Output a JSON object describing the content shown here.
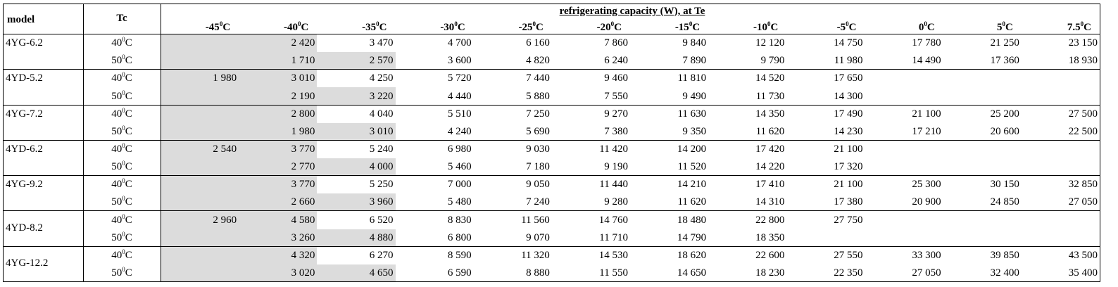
{
  "table": {
    "caption": "refrigerating capacity (W), at Te",
    "header_model": "model",
    "header_tc": "Tc",
    "te_columns": [
      {
        "value": "-45",
        "sup": "0",
        "unit": "C"
      },
      {
        "value": "-40",
        "sup": "0",
        "unit": "C"
      },
      {
        "value": "-35",
        "sup": "0",
        "unit": "C"
      },
      {
        "value": "-30",
        "sup": "0",
        "unit": "C"
      },
      {
        "value": "-25",
        "sup": "0",
        "unit": "C"
      },
      {
        "value": "-20",
        "sup": "0",
        "unit": "C"
      },
      {
        "value": "-15",
        "sup": "0",
        "unit": "C"
      },
      {
        "value": "-10",
        "sup": "0",
        "unit": "C"
      },
      {
        "value": "-5",
        "sup": "0",
        "unit": "C"
      },
      {
        "value": "0",
        "sup": "0",
        "unit": "C"
      },
      {
        "value": "5",
        "sup": "0",
        "unit": "C"
      },
      {
        "value": "7.5",
        "sup": "0",
        "unit": "C"
      }
    ],
    "groups": [
      {
        "model": "4YG-6.2",
        "lines": [
          {
            "tc": {
              "value": "40",
              "sup": "0",
              "unit": "C"
            },
            "shaded_columns": 2,
            "cells": [
              null,
              "2 420",
              "3 470",
              "4 700",
              "6 160",
              "7 860",
              "9 840",
              "12 120",
              "14 750",
              "17 780",
              "21 250",
              "23 150"
            ]
          },
          {
            "tc": {
              "value": "50",
              "sup": "0",
              "unit": "C"
            },
            "shaded_columns": 3,
            "cells": [
              null,
              "1 710",
              "2 570",
              "3 600",
              "4 820",
              "6 240",
              "7 890",
              "9 790",
              "11 980",
              "14 490",
              "17 360",
              "18 930"
            ]
          }
        ]
      },
      {
        "model": "4YD-5.2",
        "lines": [
          {
            "tc": {
              "value": "40",
              "sup": "0",
              "unit": "C"
            },
            "shaded_columns": 2,
            "cells": [
              "1 980",
              "3 010",
              "4 250",
              "5 720",
              "7 440",
              "9 460",
              "11 810",
              "14 520",
              "17 650",
              null,
              null,
              null
            ]
          },
          {
            "tc": {
              "value": "50",
              "sup": "0",
              "unit": "C"
            },
            "shaded_columns": 3,
            "cells": [
              null,
              "2 190",
              "3 220",
              "4 440",
              "5 880",
              "7 550",
              "9 490",
              "11 730",
              "14 300",
              null,
              null,
              null
            ]
          }
        ]
      },
      {
        "model": "4YG-7.2",
        "lines": [
          {
            "tc": {
              "value": "40",
              "sup": "0",
              "unit": "C"
            },
            "shaded_columns": 2,
            "cells": [
              null,
              "2 800",
              "4 040",
              "5 510",
              "7 250",
              "9 270",
              "11 630",
              "14 350",
              "17 490",
              "21 100",
              "25 200",
              "27 500"
            ]
          },
          {
            "tc": {
              "value": "50",
              "sup": "0",
              "unit": "C"
            },
            "shaded_columns": 3,
            "cells": [
              null,
              "1 980",
              "3 010",
              "4 240",
              "5 690",
              "7 380",
              "9 350",
              "11 620",
              "14 230",
              "17 210",
              "20 600",
              "22 500"
            ]
          }
        ]
      },
      {
        "model": "4YD-6.2",
        "lines": [
          {
            "tc": {
              "value": "40",
              "sup": "0",
              "unit": "C"
            },
            "shaded_columns": 2,
            "cells": [
              "2 540",
              "3 770",
              "5 240",
              "6 980",
              "9 030",
              "11 420",
              "14 200",
              "17 420",
              "21 100",
              null,
              null,
              null
            ]
          },
          {
            "tc": {
              "value": "50",
              "sup": "0",
              "unit": "C"
            },
            "shaded_columns": 3,
            "cells": [
              null,
              "2 770",
              "4 000",
              "5 460",
              "7 180",
              "9 190",
              "11 520",
              "14 220",
              "17 320",
              null,
              null,
              null
            ]
          }
        ]
      },
      {
        "model": "4YG-9.2",
        "lines": [
          {
            "tc": {
              "value": "40",
              "sup": "0",
              "unit": "C"
            },
            "shaded_columns": 2,
            "cells": [
              null,
              "3 770",
              "5 250",
              "7 000",
              "9 050",
              "11 440",
              "14 210",
              "17 410",
              "21 100",
              "25 300",
              "30 150",
              "32 850"
            ]
          },
          {
            "tc": {
              "value": "50",
              "sup": "0",
              "unit": "C"
            },
            "shaded_columns": 3,
            "cells": [
              null,
              "2 660",
              "3 960",
              "5 480",
              "7 240",
              "9 280",
              "11 620",
              "14 310",
              "17 380",
              "20 900",
              "24 850",
              "27 050"
            ]
          }
        ]
      },
      {
        "model": "4YD-8.2",
        "lines": [
          {
            "tc": {
              "value": "40",
              "sup": "0",
              "unit": "C"
            },
            "shaded_columns": 2,
            "cells": [
              "2 960",
              "4 580",
              "6 520",
              "8 830",
              "11 560",
              "14 760",
              "18 480",
              "22 800",
              "27 750",
              null,
              null,
              null
            ]
          },
          {
            "tc": {
              "value": "50",
              "sup": "0",
              "unit": "C"
            },
            "shaded_columns": 3,
            "cells": [
              null,
              "3 260",
              "4 880",
              "6 800",
              "9 070",
              "11 710",
              "14 790",
              "18 350",
              null,
              null,
              null,
              null
            ]
          }
        ]
      },
      {
        "model": "4YG-12.2",
        "lines": [
          {
            "tc": {
              "value": "40",
              "sup": "0",
              "unit": "C"
            },
            "shaded_columns": 2,
            "cells": [
              null,
              "4 320",
              "6 270",
              "8 590",
              "11 320",
              "14 530",
              "18 620",
              "22 600",
              "27 550",
              "33 300",
              "39 850",
              "43 500"
            ]
          },
          {
            "tc": {
              "value": "50",
              "sup": "0",
              "unit": "C"
            },
            "shaded_columns": 3,
            "cells": [
              null,
              "3 020",
              "4 650",
              "6 590",
              "8 880",
              "11 550",
              "14 650",
              "18 230",
              "22 350",
              "27 050",
              "32 400",
              "35 400"
            ]
          }
        ]
      }
    ]
  }
}
